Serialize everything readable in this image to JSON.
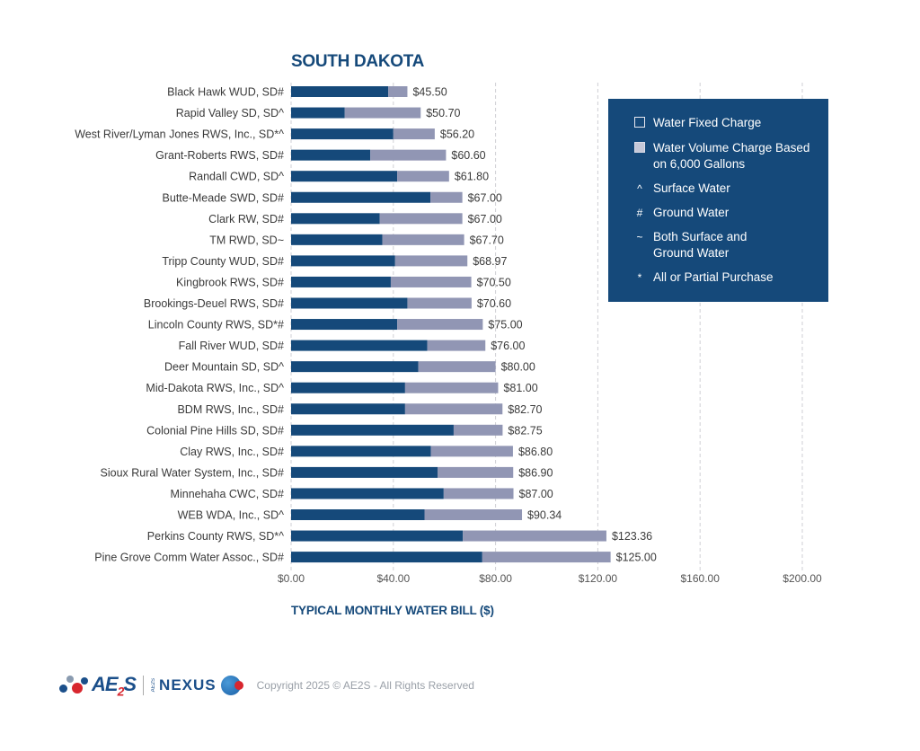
{
  "chart_data": {
    "type": "bar",
    "orientation": "horizontal",
    "stacked": true,
    "title": "SOUTH DAKOTA",
    "xlabel": "TYPICAL MONTHLY WATER BILL ($)",
    "ylabel": "",
    "xlim": [
      0,
      200
    ],
    "xticks": [
      0,
      40,
      80,
      120,
      160,
      200
    ],
    "xtick_labels": [
      "$0.00",
      "$40.00",
      "$80.00",
      "$120.00",
      "$160.00",
      "$200.00"
    ],
    "grid": "vertical-dashed",
    "legend_position": "top-right",
    "categories": [
      "Black Hawk WUD, SD#",
      "Rapid Valley SD, SD^",
      "West River/Lyman Jones RWS, Inc., SD*^",
      "Grant-Roberts RWS, SD#",
      "Randall CWD, SD^",
      "Butte-Meade SWD, SD#",
      "Clark RW, SD#",
      "TM RWD, SD~",
      "Tripp County WUD, SD#",
      "Kingbrook RWS, SD#",
      "Brookings-Deuel RWS, SD#",
      "Lincoln County RWS, SD*#",
      "Fall River WUD, SD#",
      "Deer Mountain SD, SD^",
      "Mid-Dakota RWS, Inc., SD^",
      "BDM RWS, Inc., SD#",
      "Colonial Pine Hills SD, SD#",
      "Clay RWS, Inc., SD#",
      "Sioux Rural Water System, Inc., SD#",
      "Minnehaha CWC, SD#",
      "WEB WDA, Inc., SD^",
      "Perkins County RWS, SD*^",
      "Pine Grove Comm Water Assoc., SD#"
    ],
    "totals": [
      45.5,
      50.7,
      56.2,
      60.6,
      61.8,
      67.0,
      67.0,
      67.7,
      68.97,
      70.5,
      70.6,
      75.0,
      76.0,
      80.0,
      81.0,
      82.7,
      82.75,
      86.8,
      86.9,
      87.0,
      90.34,
      123.36,
      125.0
    ],
    "total_labels": [
      "$45.50",
      "$50.70",
      "$56.20",
      "$60.60",
      "$61.80",
      "$67.00",
      "$67.00",
      "$67.70",
      "$68.97",
      "$70.50",
      "$70.60",
      "$75.00",
      "$76.00",
      "$80.00",
      "$81.00",
      "$82.70",
      "$82.75",
      "$86.80",
      "$86.90",
      "$87.00",
      "$90.34",
      "$123.36",
      "$125.00"
    ],
    "series": [
      {
        "name": "Water Fixed Charge",
        "color": "#15497a",
        "values": [
          38.0,
          21.0,
          40.0,
          31.0,
          41.5,
          54.5,
          34.7,
          35.7,
          40.7,
          39.0,
          45.5,
          41.5,
          53.3,
          49.8,
          44.6,
          44.6,
          63.6,
          54.7,
          57.3,
          59.7,
          52.2,
          67.2,
          74.8
        ]
      },
      {
        "name": "Water Volume Charge Based on 6,000 Gallons",
        "color": "#9196b4",
        "values": [
          7.5,
          29.7,
          16.2,
          29.6,
          20.3,
          12.5,
          32.3,
          32.0,
          28.27,
          31.5,
          25.1,
          33.5,
          22.7,
          30.2,
          36.4,
          38.1,
          19.15,
          32.1,
          29.6,
          27.3,
          38.14,
          56.16,
          50.2
        ]
      }
    ]
  },
  "legend": {
    "items": [
      {
        "symbol": "",
        "kind": "fixed-swatch",
        "label": "Water Fixed Charge"
      },
      {
        "symbol": "",
        "kind": "volume-swatch",
        "label": "Water Volume Charge Based on 6,000 Gallons"
      },
      {
        "symbol": "^",
        "kind": "glyph",
        "label": "Surface Water"
      },
      {
        "symbol": "#",
        "kind": "glyph",
        "label": "Ground Water"
      },
      {
        "symbol": "~",
        "kind": "glyph",
        "label": "Both Surface and Ground Water"
      },
      {
        "symbol": "*",
        "kind": "glyph",
        "label": "All or Partial Purchase"
      }
    ]
  },
  "colors": {
    "brand_blue": "#15497a",
    "fixed": "#15497a",
    "volume": "#9196b4",
    "grid": "#cfcfd4"
  },
  "footer": {
    "brand": "AE2S",
    "brand_main": "AE",
    "brand_sub": "2",
    "brand_end": "S",
    "nexus_prefix": "AE2S",
    "nexus": "NEXUS",
    "copyright": "Copyright 2025 © AE2S - All Rights Reserved"
  }
}
